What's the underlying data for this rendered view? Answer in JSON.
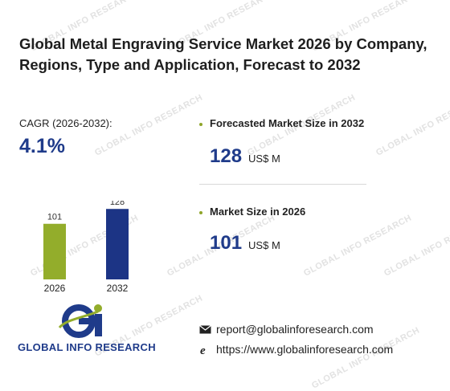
{
  "title": "Global Metal Engraving Service Market 2026 by Company, Regions, Type and Application, Forecast to 2032",
  "cagr": {
    "label": "CAGR (2026-2032):",
    "value": "4.1%"
  },
  "kpis": [
    {
      "label": "Forecasted Market Size in 2032",
      "value": "128",
      "unit": "US$ M"
    },
    {
      "label": "Market Size in 2026",
      "value": "101",
      "unit": "US$ M"
    }
  ],
  "contact": {
    "email": "report@globalinforesearch.com",
    "website": "https://www.globalinforesearch.com"
  },
  "logo": {
    "text": "GLOBAL INFO RESEARCH"
  },
  "watermark": "GLOBAL INFO RESEARCH",
  "colors": {
    "bar_2026": "#93ad2b",
    "bar_2032": "#1c3485",
    "accent": "#1f3b8a"
  },
  "chart_data": {
    "type": "bar",
    "categories": [
      "2026",
      "2032"
    ],
    "values": [
      101,
      128
    ],
    "ylim": [
      0,
      140
    ],
    "grid": false,
    "data_labels": true
  }
}
